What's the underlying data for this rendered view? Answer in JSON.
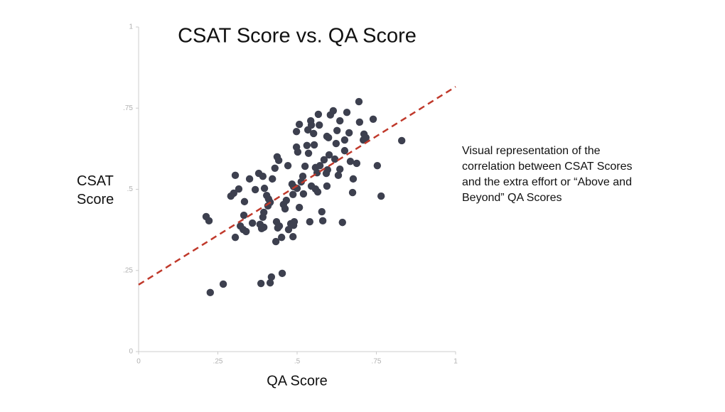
{
  "chart_data": {
    "type": "scatter",
    "title": "CSAT Score vs. QA Score",
    "xlabel": "QA Score",
    "ylabel": "CSAT Score",
    "annotation": [
      "Visual representation of the",
      "correlation between CSAT Scores",
      "and the extra effort or “Above and",
      "Beyond” QA Scores"
    ],
    "color": "#3d404f",
    "xlim": [
      0,
      1
    ],
    "ylim": [
      0,
      1
    ],
    "xticks": [
      0,
      {
        "value": 0.25,
        "label": ".25"
      },
      {
        "value": 0.5,
        "label": ".5"
      },
      {
        "value": 0.75,
        "label": ".75"
      },
      1
    ],
    "yticks": [
      0,
      {
        "value": 0.25,
        "label": ".25"
      },
      {
        "value": 0.5,
        "label": ".5"
      },
      {
        "value": 0.75,
        "label": ".75"
      },
      1
    ],
    "grid": false,
    "x": [
      0.213,
      0.222,
      0.226,
      0.267,
      0.291,
      0.3,
      0.305,
      0.316,
      0.321,
      0.305,
      0.33,
      0.339,
      0.334,
      0.35,
      0.359,
      0.368,
      0.379,
      0.383,
      0.392,
      0.397,
      0.404,
      0.408,
      0.395,
      0.392,
      0.395,
      0.388,
      0.41,
      0.415,
      0.422,
      0.43,
      0.437,
      0.442,
      0.435,
      0.439,
      0.444,
      0.433,
      0.451,
      0.457,
      0.466,
      0.462,
      0.471,
      0.473,
      0.48,
      0.484,
      0.487,
      0.489,
      0.491,
      0.487,
      0.489,
      0.498,
      0.498,
      0.5,
      0.507,
      0.507,
      0.502,
      0.513,
      0.518,
      0.52,
      0.525,
      0.531,
      0.536,
      0.534,
      0.54,
      0.543,
      0.545,
      0.545,
      0.554,
      0.552,
      0.558,
      0.558,
      0.563,
      0.565,
      0.57,
      0.572,
      0.567,
      0.578,
      0.581,
      0.585,
      0.592,
      0.594,
      0.599,
      0.594,
      0.596,
      0.605,
      0.601,
      0.614,
      0.623,
      0.619,
      0.626,
      0.63,
      0.635,
      0.635,
      0.643,
      0.65,
      0.65,
      0.657,
      0.664,
      0.668,
      0.675,
      0.677,
      0.688,
      0.697,
      0.709,
      0.695,
      0.711,
      0.717,
      0.74,
      0.753,
      0.765,
      0.83,
      0.415,
      0.419,
      0.453,
      0.386,
      0.332
    ],
    "y": [
      0.416,
      0.403,
      0.182,
      0.208,
      0.479,
      0.488,
      0.543,
      0.501,
      0.387,
      0.352,
      0.376,
      0.37,
      0.462,
      0.532,
      0.396,
      0.499,
      0.549,
      0.392,
      0.54,
      0.503,
      0.481,
      0.449,
      0.429,
      0.414,
      0.383,
      0.379,
      0.47,
      0.46,
      0.532,
      0.565,
      0.6,
      0.589,
      0.4,
      0.381,
      0.387,
      0.339,
      0.352,
      0.453,
      0.466,
      0.44,
      0.573,
      0.376,
      0.394,
      0.516,
      0.484,
      0.508,
      0.4,
      0.354,
      0.389,
      0.63,
      0.678,
      0.503,
      0.444,
      0.7,
      0.615,
      0.523,
      0.54,
      0.486,
      0.571,
      0.635,
      0.611,
      0.683,
      0.4,
      0.711,
      0.698,
      0.51,
      0.637,
      0.672,
      0.501,
      0.567,
      0.551,
      0.492,
      0.698,
      0.573,
      0.731,
      0.431,
      0.403,
      0.591,
      0.549,
      0.663,
      0.659,
      0.51,
      0.56,
      0.729,
      0.606,
      0.742,
      0.641,
      0.593,
      0.681,
      0.543,
      0.562,
      0.711,
      0.398,
      0.619,
      0.652,
      0.737,
      0.674,
      0.586,
      0.49,
      0.532,
      0.58,
      0.707,
      0.652,
      0.77,
      0.67,
      0.659,
      0.716,
      0.573,
      0.479,
      0.65,
      0.212,
      0.23,
      0.241,
      0.21,
      0.42
    ],
    "trendline": {
      "x": [
        0,
        1
      ],
      "y": [
        0.206,
        0.816
      ],
      "color": "#c0392b"
    }
  }
}
